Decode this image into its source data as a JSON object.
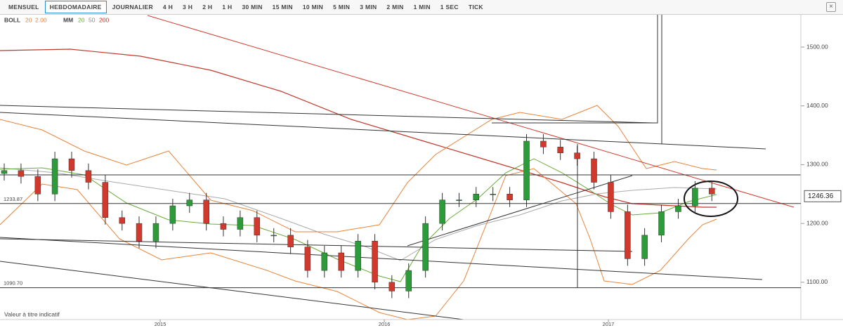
{
  "toolbar": {
    "tabs": [
      "MENSUEL",
      "HEBDOMADAIRE",
      "JOURNALIER",
      "4 H",
      "3 H",
      "2 H",
      "1 H",
      "30 MIN",
      "15 MIN",
      "10 MIN",
      "5 MIN",
      "3 MIN",
      "2 MIN",
      "1 MIN",
      "1 SEC",
      "TICK"
    ]
  },
  "indicators": {
    "boll": {
      "name": "BOLL",
      "params": [
        "20",
        "2.00"
      ]
    },
    "mm": {
      "name": "MM",
      "params": [
        "20",
        "50",
        "200"
      ]
    }
  },
  "footer_note": "Valeur à titre indicatif",
  "chart_data": {
    "type": "candlestick",
    "x": [
      2014.285,
      2014.36,
      2014.435,
      2014.511,
      2014.586,
      2014.661,
      2014.736,
      2014.811,
      2014.887,
      2014.962,
      2015.037,
      2015.112,
      2015.187,
      2015.263,
      2015.338,
      2015.413,
      2015.488,
      2015.563,
      2015.639,
      2015.714,
      2015.789,
      2015.864,
      2015.939,
      2016.015,
      2016.09,
      2016.165,
      2016.24,
      2016.315,
      2016.391,
      2016.466,
      2016.541,
      2016.616,
      2016.691,
      2016.767,
      2016.842,
      2016.917,
      2016.992,
      2017.067,
      2017.143,
      2017.218,
      2017.293,
      2017.368,
      2017.443
    ],
    "open": [
      1285,
      1290,
      1280,
      1250,
      1310,
      1290,
      1270,
      1210,
      1200,
      1170,
      1200,
      1230,
      1240,
      1200,
      1190,
      1210,
      1180,
      1180,
      1160,
      1120,
      1150,
      1120,
      1170,
      1100,
      1085,
      1120,
      1200,
      1240,
      1240,
      1250,
      1250,
      1240,
      1340,
      1330,
      1320,
      1310,
      1270,
      1220,
      1140,
      1180,
      1220,
      1230,
      1260
    ],
    "high": [
      1302,
      1302,
      1292,
      1322,
      1322,
      1302,
      1282,
      1222,
      1212,
      1212,
      1242,
      1252,
      1252,
      1212,
      1222,
      1222,
      1192,
      1192,
      1172,
      1162,
      1162,
      1182,
      1182,
      1112,
      1132,
      1212,
      1252,
      1252,
      1262,
      1262,
      1262,
      1352,
      1352,
      1342,
      1332,
      1322,
      1282,
      1232,
      1192,
      1232,
      1242,
      1272,
      1272
    ],
    "low": [
      1273,
      1268,
      1238,
      1238,
      1278,
      1258,
      1198,
      1188,
      1158,
      1158,
      1188,
      1218,
      1188,
      1178,
      1178,
      1168,
      1168,
      1148,
      1108,
      1108,
      1108,
      1108,
      1088,
      1073,
      1073,
      1108,
      1188,
      1228,
      1228,
      1238,
      1228,
      1228,
      1318,
      1308,
      1298,
      1258,
      1208,
      1128,
      1128,
      1168,
      1208,
      1218,
      1238
    ],
    "close": [
      1290,
      1280,
      1250,
      1310,
      1290,
      1270,
      1210,
      1200,
      1170,
      1200,
      1230,
      1240,
      1200,
      1190,
      1210,
      1180,
      1180,
      1160,
      1120,
      1150,
      1120,
      1170,
      1100,
      1085,
      1120,
      1200,
      1240,
      1240,
      1250,
      1250,
      1240,
      1340,
      1330,
      1320,
      1310,
      1270,
      1220,
      1140,
      1180,
      1220,
      1230,
      1260,
      1250
    ],
    "up_color": "#2e9b3a",
    "down_color": "#d03a2e",
    "xlim": [
      2014.285,
      2017.859
    ],
    "ylim": [
      1036.5,
      1555
    ],
    "xticks": [
      2015,
      2016,
      2017
    ],
    "yticks": [
      {
        "value": 1100,
        "label": "1100.00"
      },
      {
        "value": 1200,
        "label": "1200.00"
      },
      {
        "value": 1300,
        "label": "1300.00"
      },
      {
        "value": 1400,
        "label": "1400.00"
      },
      {
        "value": 1500,
        "label": "1500.00"
      }
    ],
    "level_labels": [
      1233.87,
      {
        "value": 1090.7,
        "label": "1090.70"
      }
    ],
    "last_price": 1246.36
  }
}
